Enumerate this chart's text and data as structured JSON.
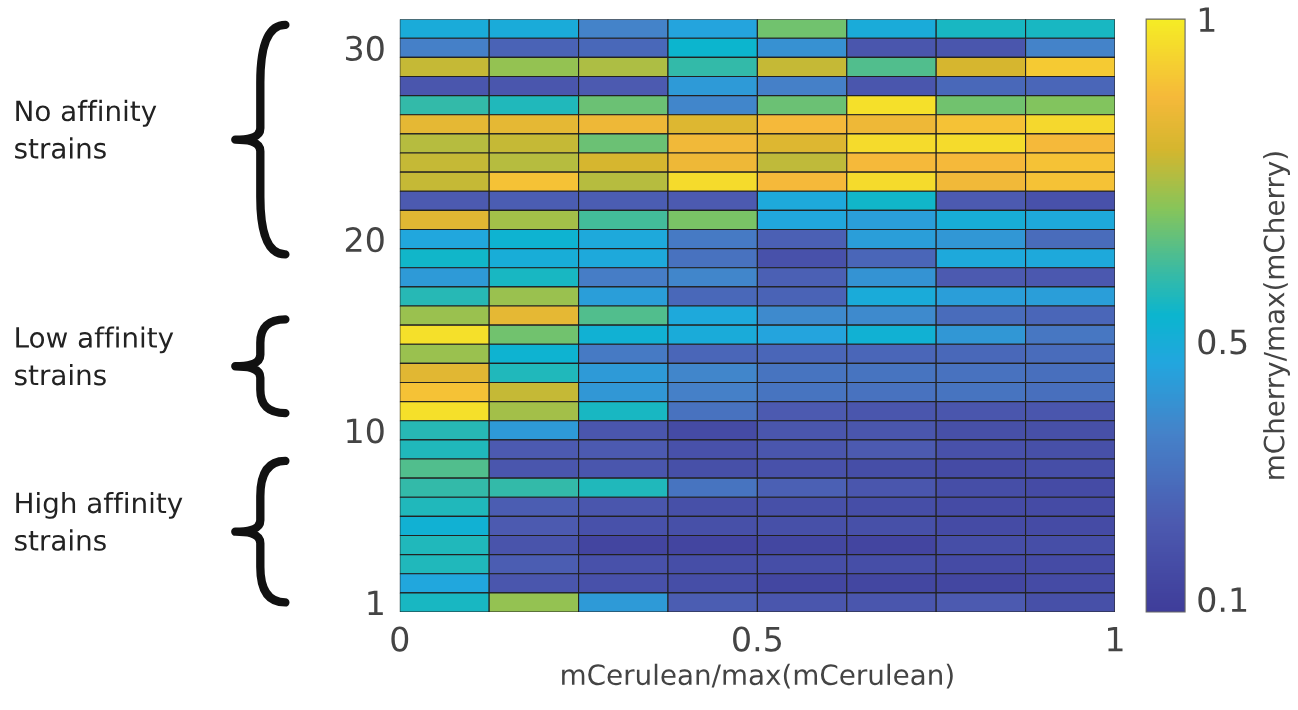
{
  "chart_data": {
    "type": "heatmap",
    "xlabel": "mCerulean/max(mCerulean)",
    "clabel": "mCherry/max(mCherry)",
    "x": [
      0.0625,
      0.1875,
      0.3125,
      0.4375,
      0.5625,
      0.6875,
      0.8125,
      0.9375
    ],
    "y_categories": [
      null,
      "30",
      null,
      null,
      null,
      null,
      null,
      null,
      null,
      null,
      null,
      "20",
      null,
      null,
      null,
      null,
      null,
      null,
      null,
      null,
      null,
      "10",
      null,
      null,
      null,
      null,
      null,
      null,
      null,
      null,
      "1"
    ],
    "xlim": [
      0,
      1
    ],
    "xticks": [
      0,
      0.5,
      1
    ],
    "clim": [
      0.08,
      1
    ],
    "cticks": [
      0.1,
      0.5,
      1
    ],
    "annotations": [
      "No affinity\nstrains",
      "Low affinity\nstrains",
      "High affinity\nstrains"
    ],
    "cells": [
      [
        0.49,
        0.49,
        0.36,
        0.46,
        0.68,
        0.49,
        0.56,
        0.56
      ],
      [
        0.35,
        0.25,
        0.27,
        0.54,
        0.4,
        0.2,
        0.2,
        0.36
      ],
      [
        0.78,
        0.72,
        0.75,
        0.6,
        0.78,
        0.64,
        0.8,
        0.92
      ],
      [
        0.2,
        0.2,
        0.22,
        0.43,
        0.35,
        0.2,
        0.27,
        0.26
      ],
      [
        0.6,
        0.57,
        0.67,
        0.37,
        0.67,
        0.97,
        0.68,
        0.7
      ],
      [
        0.84,
        0.84,
        0.86,
        0.82,
        0.88,
        0.86,
        0.9,
        0.95
      ],
      [
        0.76,
        0.78,
        0.67,
        0.87,
        0.82,
        0.96,
        0.96,
        0.88
      ],
      [
        0.78,
        0.76,
        0.8,
        0.86,
        0.77,
        0.88,
        0.88,
        0.9
      ],
      [
        0.78,
        0.9,
        0.76,
        0.96,
        0.88,
        0.96,
        0.87,
        0.9
      ],
      [
        0.22,
        0.23,
        0.23,
        0.22,
        0.48,
        0.55,
        0.22,
        0.18
      ],
      [
        0.83,
        0.74,
        0.62,
        0.69,
        0.47,
        0.44,
        0.5,
        0.48
      ],
      [
        0.47,
        0.53,
        0.48,
        0.33,
        0.24,
        0.44,
        0.42,
        0.28
      ],
      [
        0.55,
        0.5,
        0.48,
        0.3,
        0.18,
        0.26,
        0.48,
        0.48
      ],
      [
        0.43,
        0.56,
        0.34,
        0.37,
        0.24,
        0.41,
        0.22,
        0.21
      ],
      [
        0.58,
        0.73,
        0.44,
        0.27,
        0.25,
        0.49,
        0.44,
        0.44
      ],
      [
        0.73,
        0.84,
        0.64,
        0.48,
        0.38,
        0.38,
        0.28,
        0.26
      ],
      [
        0.97,
        0.68,
        0.52,
        0.49,
        0.46,
        0.52,
        0.42,
        0.32
      ],
      [
        0.73,
        0.53,
        0.33,
        0.26,
        0.26,
        0.26,
        0.27,
        0.28
      ],
      [
        0.83,
        0.57,
        0.43,
        0.37,
        0.31,
        0.31,
        0.3,
        0.29
      ],
      [
        0.9,
        0.78,
        0.42,
        0.35,
        0.31,
        0.3,
        0.31,
        0.29
      ],
      [
        0.97,
        0.74,
        0.56,
        0.3,
        0.22,
        0.2,
        0.2,
        0.2
      ],
      [
        0.58,
        0.43,
        0.2,
        0.15,
        0.2,
        0.2,
        0.17,
        0.17
      ],
      [
        0.57,
        0.22,
        0.22,
        0.18,
        0.2,
        0.22,
        0.18,
        0.17
      ],
      [
        0.64,
        0.2,
        0.2,
        0.17,
        0.18,
        0.16,
        0.15,
        0.16
      ],
      [
        0.6,
        0.6,
        0.57,
        0.31,
        0.24,
        0.2,
        0.16,
        0.15
      ],
      [
        0.57,
        0.23,
        0.2,
        0.17,
        0.17,
        0.16,
        0.15,
        0.15
      ],
      [
        0.52,
        0.22,
        0.18,
        0.17,
        0.17,
        0.17,
        0.15,
        0.15
      ],
      [
        0.57,
        0.19,
        0.12,
        0.12,
        0.13,
        0.12,
        0.16,
        0.16
      ],
      [
        0.57,
        0.23,
        0.18,
        0.16,
        0.16,
        0.16,
        0.15,
        0.15
      ],
      [
        0.47,
        0.2,
        0.18,
        0.16,
        0.13,
        0.13,
        0.13,
        0.15
      ],
      [
        0.56,
        0.72,
        0.43,
        0.23,
        0.2,
        0.2,
        0.22,
        0.17
      ]
    ]
  }
}
